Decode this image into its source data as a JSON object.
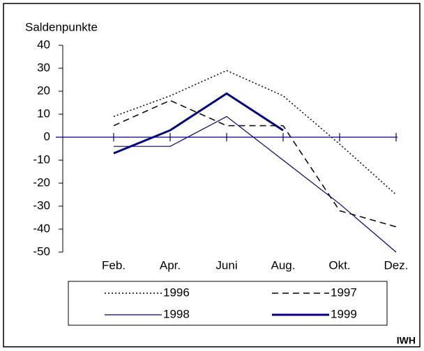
{
  "chart_data": {
    "type": "line",
    "y_label": "Saldenpunkte",
    "source": "IWH",
    "categories": [
      "Feb.",
      "Apr.",
      "Juni",
      "Aug.",
      "Okt.",
      "Dez."
    ],
    "ylim": [
      -50,
      40
    ],
    "yticks": [
      40,
      30,
      20,
      10,
      0,
      -10,
      -20,
      -30,
      -40,
      -50
    ],
    "grid": false,
    "series": [
      {
        "name": "1996",
        "color": "#000000",
        "style": "dotted",
        "width": 1.5,
        "values": [
          9,
          18,
          29,
          18,
          -3,
          -25
        ]
      },
      {
        "name": "1997",
        "color": "#000000",
        "style": "dashed",
        "width": 1.5,
        "values": [
          5,
          16,
          5,
          5,
          -32,
          -39
        ]
      },
      {
        "name": "1998",
        "color": "#000080",
        "style": "solid",
        "width": 1.2,
        "values": [
          -4,
          -4,
          9,
          -10,
          -29,
          -50
        ]
      },
      {
        "name": "1999",
        "color": "#000080",
        "style": "solid",
        "width": 3,
        "values": [
          -7,
          3,
          19,
          3,
          null,
          null
        ]
      }
    ]
  }
}
